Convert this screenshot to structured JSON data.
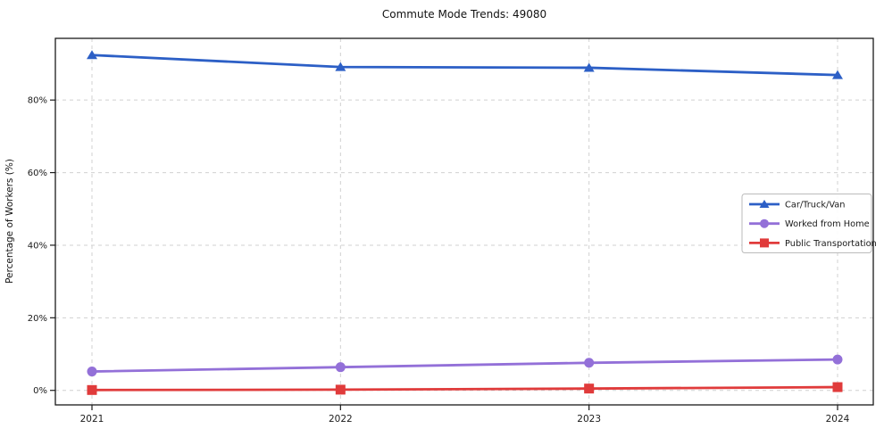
{
  "chart_data": {
    "type": "line",
    "title": "Commute Mode Trends: 49080",
    "xlabel": "",
    "ylabel": "Percentage of Workers (%)",
    "categories": [
      "2021",
      "2022",
      "2023",
      "2024"
    ],
    "series": [
      {
        "name": "Car/Truck/Van",
        "marker": "triangle",
        "color": "#2c5fc6",
        "values": [
          92.4,
          89.1,
          88.9,
          86.9
        ]
      },
      {
        "name": "Worked from Home",
        "marker": "circle",
        "color": "#9370d8",
        "values": [
          5.2,
          6.4,
          7.6,
          8.5
        ]
      },
      {
        "name": "Public Transportation",
        "marker": "square",
        "color": "#e03b3b",
        "values": [
          0.1,
          0.2,
          0.5,
          0.9
        ]
      }
    ],
    "yticks": [
      0,
      20,
      40,
      60,
      80
    ],
    "ytick_labels": [
      "0%",
      "20%",
      "40%",
      "60%",
      "80%"
    ],
    "ylim": [
      -4,
      97
    ],
    "grid": true,
    "grid_style": "dashed",
    "grid_color": "#d0d0d0",
    "axis_color": "#1a1a1a",
    "legend_position": "right",
    "legend_labels": [
      "Car/Truck/Van",
      "Worked from Home",
      "Public Transportation"
    ]
  }
}
